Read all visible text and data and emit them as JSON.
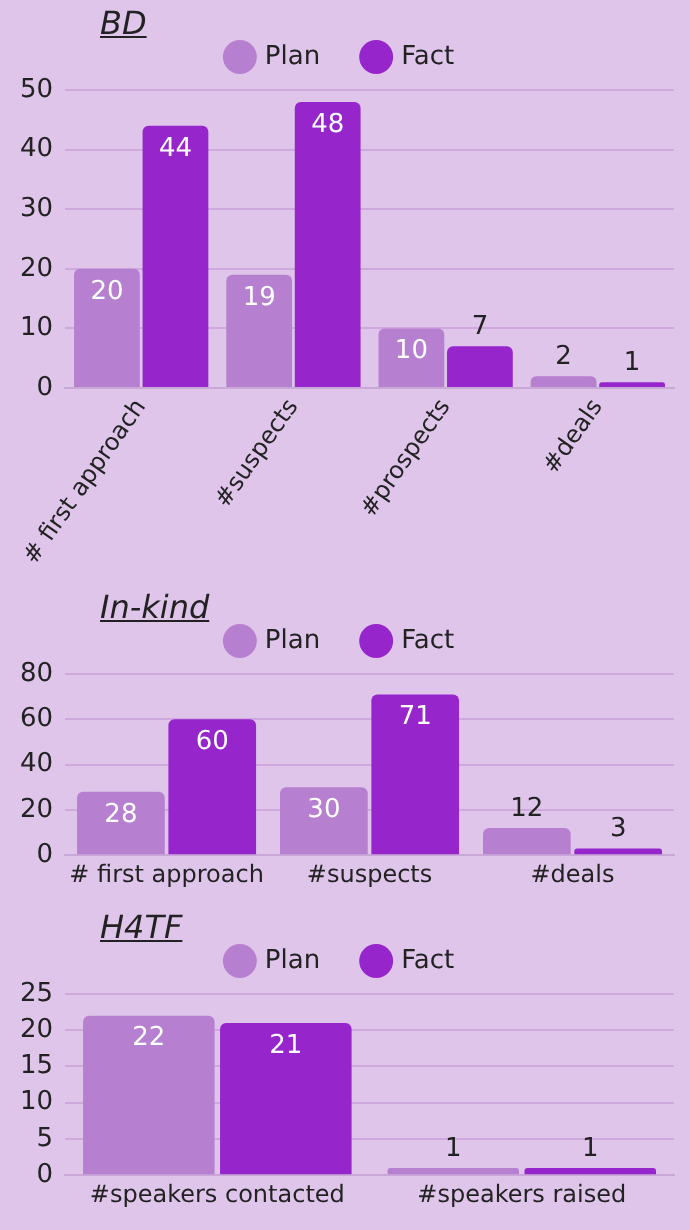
{
  "chart_data": [
    {
      "type": "bar",
      "title": "BD",
      "categories": [
        "# first approach",
        "#suspects",
        "#prospects",
        "#deals"
      ],
      "series": [
        {
          "name": "Plan",
          "color": "#b77fd0",
          "values": [
            20,
            19,
            10,
            2
          ]
        },
        {
          "name": "Fact",
          "color": "#9625cc",
          "values": [
            44,
            48,
            7,
            1
          ]
        }
      ],
      "ylim": [
        0,
        50
      ],
      "yticks": [
        0,
        10,
        20,
        30,
        40,
        50
      ],
      "grid": "y",
      "legend": "top",
      "data_labels": true
    },
    {
      "type": "bar",
      "title": "In-kind",
      "categories": [
        "# first approach",
        "#suspects",
        "#deals"
      ],
      "series": [
        {
          "name": "Plan",
          "color": "#b77fd0",
          "values": [
            28,
            30,
            12
          ]
        },
        {
          "name": "Fact",
          "color": "#9625cc",
          "values": [
            60,
            71,
            3
          ]
        }
      ],
      "ylim": [
        0,
        80
      ],
      "yticks": [
        0,
        20,
        40,
        60,
        80
      ],
      "grid": "y",
      "legend": "top",
      "data_labels": true
    },
    {
      "type": "bar",
      "title": "H4TF",
      "categories": [
        "#speakers contacted",
        "#speakers raised"
      ],
      "series": [
        {
          "name": "Plan",
          "color": "#b77fd0",
          "values": [
            22,
            1
          ]
        },
        {
          "name": "Fact",
          "color": "#9625cc",
          "values": [
            21,
            1
          ]
        }
      ],
      "ylim": [
        0,
        25
      ],
      "yticks": [
        0,
        5,
        10,
        15,
        20,
        25
      ],
      "grid": "y",
      "legend": "top",
      "data_labels": true
    }
  ]
}
